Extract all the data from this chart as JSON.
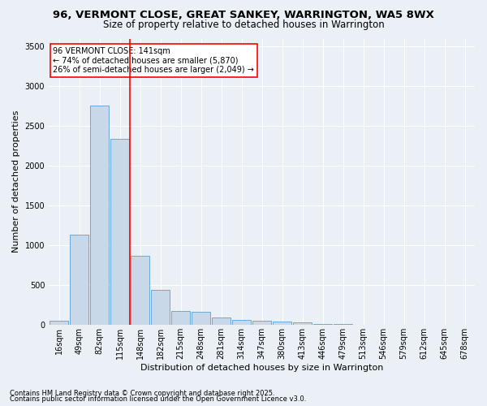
{
  "title": "96, VERMONT CLOSE, GREAT SANKEY, WARRINGTON, WA5 8WX",
  "subtitle": "Size of property relative to detached houses in Warrington",
  "xlabel": "Distribution of detached houses by size in Warrington",
  "ylabel": "Number of detached properties",
  "categories": [
    "16sqm",
    "49sqm",
    "82sqm",
    "115sqm",
    "148sqm",
    "182sqm",
    "215sqm",
    "248sqm",
    "281sqm",
    "314sqm",
    "347sqm",
    "380sqm",
    "413sqm",
    "446sqm",
    "479sqm",
    "513sqm",
    "546sqm",
    "579sqm",
    "612sqm",
    "645sqm",
    "678sqm"
  ],
  "values": [
    50,
    1130,
    2760,
    2340,
    870,
    440,
    170,
    165,
    90,
    60,
    45,
    35,
    30,
    10,
    10,
    0,
    0,
    0,
    0,
    0,
    0
  ],
  "bar_color": "#c8d8e8",
  "bar_edge_color": "#5a9fd4",
  "vline_color": "red",
  "vline_pos": 3.5,
  "annotation_title": "96 VERMONT CLOSE: 141sqm",
  "annotation_line1": "← 74% of detached houses are smaller (5,870)",
  "annotation_line2": "26% of semi-detached houses are larger (2,049) →",
  "footnote1": "Contains HM Land Registry data © Crown copyright and database right 2025.",
  "footnote2": "Contains public sector information licensed under the Open Government Licence v3.0.",
  "ylim": [
    0,
    3600
  ],
  "yticks": [
    0,
    500,
    1000,
    1500,
    2000,
    2500,
    3000,
    3500
  ],
  "background_color": "#eaf0f6",
  "grid_color": "#ffffff",
  "title_fontsize": 9.5,
  "subtitle_fontsize": 8.5,
  "axis_label_fontsize": 8,
  "tick_fontsize": 7,
  "annotation_fontsize": 7,
  "footnote_fontsize": 6
}
